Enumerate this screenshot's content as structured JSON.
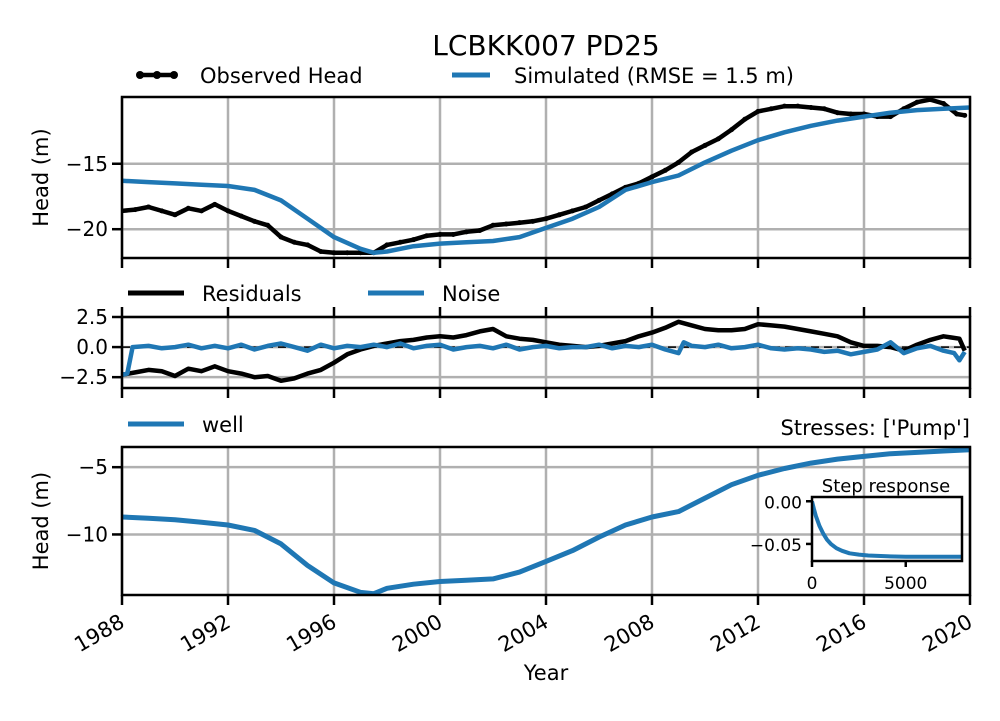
{
  "colors": {
    "observed": "#000000",
    "simulated": "#1f77b4",
    "residuals": "#000000",
    "noise": "#1f77b4",
    "well": "#1f77b4",
    "grid": "#b0b0b0"
  },
  "chart_data": [
    {
      "type": "line",
      "title": "LCBKK007 PD25",
      "xlabel": "",
      "ylabel": "Head (m)",
      "xlim": [
        1988,
        2020
      ],
      "ylim": [
        -22.2,
        -9.9
      ],
      "yticks": [
        -15,
        -20
      ],
      "ytick_labels": [
        "−15",
        "−20"
      ],
      "grid": true,
      "legend": [
        "Observed Head",
        "Simulated (RMSE = 1.5 m)"
      ],
      "legend_position": "above, horizontal",
      "series": [
        {
          "name": "Observed Head",
          "marker": "dot",
          "x": [
            1988.0,
            1988.5,
            1989.0,
            1989.5,
            1990.0,
            1990.5,
            1991.0,
            1991.5,
            1992.0,
            1992.5,
            1993.0,
            1993.5,
            1994.0,
            1994.5,
            1995.0,
            1995.5,
            1996.0,
            1996.5,
            1997.0,
            1997.5,
            1998.0,
            1998.5,
            1999.0,
            1999.5,
            2000.0,
            2000.5,
            2001.0,
            2001.5,
            2002.0,
            2002.5,
            2003.0,
            2003.5,
            2004.0,
            2004.5,
            2005.0,
            2005.5,
            2006.0,
            2006.5,
            2007.0,
            2007.5,
            2008.0,
            2008.5,
            2009.0,
            2009.5,
            2010.0,
            2010.5,
            2011.0,
            2011.5,
            2012.0,
            2012.5,
            2013.0,
            2013.5,
            2014.0,
            2014.5,
            2015.0,
            2015.5,
            2016.0,
            2016.5,
            2017.0,
            2017.5,
            2018.0,
            2018.5,
            2019.0,
            2019.5,
            2019.8
          ],
          "y": [
            -18.6,
            -18.5,
            -18.3,
            -18.6,
            -18.9,
            -18.4,
            -18.6,
            -18.1,
            -18.6,
            -19.0,
            -19.4,
            -19.7,
            -20.6,
            -21.0,
            -21.2,
            -21.7,
            -21.8,
            -21.8,
            -21.8,
            -21.8,
            -21.2,
            -21.0,
            -20.8,
            -20.5,
            -20.4,
            -20.4,
            -20.2,
            -20.1,
            -19.7,
            -19.6,
            -19.5,
            -19.4,
            -19.2,
            -18.9,
            -18.6,
            -18.3,
            -17.8,
            -17.3,
            -16.8,
            -16.5,
            -16.0,
            -15.5,
            -14.9,
            -14.1,
            -13.6,
            -13.1,
            -12.4,
            -11.6,
            -11.0,
            -10.8,
            -10.6,
            -10.6,
            -10.7,
            -10.8,
            -11.1,
            -11.2,
            -11.2,
            -11.4,
            -11.4,
            -10.8,
            -10.3,
            -10.1,
            -10.4,
            -11.2,
            -11.3
          ]
        },
        {
          "name": "Simulated (RMSE = 1.5 m)",
          "x": [
            1988.0,
            1989.0,
            1990.0,
            1991.0,
            1992.0,
            1993.0,
            1994.0,
            1995.0,
            1996.0,
            1997.0,
            1997.5,
            1998.0,
            1999.0,
            2000.0,
            2001.0,
            2002.0,
            2003.0,
            2004.0,
            2005.0,
            2006.0,
            2007.0,
            2008.0,
            2009.0,
            2010.0,
            2011.0,
            2012.0,
            2013.0,
            2014.0,
            2015.0,
            2016.0,
            2017.0,
            2018.0,
            2019.0,
            2020.0
          ],
          "y": [
            -16.3,
            -16.4,
            -16.5,
            -16.6,
            -16.7,
            -17.0,
            -17.8,
            -19.2,
            -20.6,
            -21.5,
            -21.8,
            -21.7,
            -21.3,
            -21.1,
            -21.0,
            -20.9,
            -20.6,
            -19.9,
            -19.2,
            -18.3,
            -17.0,
            -16.4,
            -15.9,
            -14.9,
            -14.0,
            -13.2,
            -12.6,
            -12.1,
            -11.7,
            -11.4,
            -11.1,
            -10.9,
            -10.8,
            -10.7
          ]
        }
      ]
    },
    {
      "type": "line",
      "xlim": [
        1988,
        2020
      ],
      "ylim": [
        -3.4,
        2.5
      ],
      "yticks": [
        2.5,
        0.0,
        -2.5
      ],
      "ytick_labels": [
        "2.5",
        "0.0",
        "−2.5"
      ],
      "zero_line": "dashed",
      "grid": true,
      "legend": [
        "Residuals",
        "Noise"
      ],
      "legend_position": "above, horizontal",
      "series": [
        {
          "name": "Residuals",
          "x": [
            1988.0,
            1988.5,
            1989.0,
            1989.5,
            1990.0,
            1990.5,
            1991.0,
            1991.5,
            1992.0,
            1992.5,
            1993.0,
            1993.5,
            1994.0,
            1994.5,
            1995.0,
            1995.5,
            1996.0,
            1996.5,
            1997.0,
            1997.5,
            1998.0,
            1998.5,
            1999.0,
            1999.5,
            2000.0,
            2000.5,
            2001.0,
            2001.5,
            2002.0,
            2002.5,
            2003.0,
            2003.5,
            2004.0,
            2004.5,
            2005.0,
            2005.5,
            2006.0,
            2006.5,
            2007.0,
            2007.5,
            2008.0,
            2008.5,
            2009.0,
            2009.5,
            2010.0,
            2010.5,
            2011.0,
            2011.5,
            2012.0,
            2012.5,
            2013.0,
            2013.5,
            2014.0,
            2014.5,
            2015.0,
            2015.5,
            2016.0,
            2016.5,
            2017.0,
            2017.5,
            2018.0,
            2018.5,
            2019.0,
            2019.3,
            2019.6,
            2019.8
          ],
          "y": [
            -2.3,
            -2.1,
            -1.9,
            -2.0,
            -2.4,
            -1.8,
            -2.0,
            -1.6,
            -2.0,
            -2.2,
            -2.5,
            -2.4,
            -2.8,
            -2.6,
            -2.2,
            -1.9,
            -1.3,
            -0.6,
            -0.2,
            0.1,
            0.3,
            0.5,
            0.6,
            0.8,
            0.9,
            0.8,
            1.0,
            1.3,
            1.5,
            0.9,
            0.7,
            0.6,
            0.4,
            0.2,
            0.1,
            0.0,
            0.1,
            0.3,
            0.5,
            0.9,
            1.2,
            1.6,
            2.1,
            1.8,
            1.5,
            1.4,
            1.4,
            1.5,
            1.9,
            1.8,
            1.7,
            1.5,
            1.3,
            1.1,
            0.9,
            0.4,
            0.1,
            0.1,
            0.0,
            -0.3,
            0.2,
            0.6,
            0.9,
            0.8,
            0.7,
            -0.3
          ]
        },
        {
          "name": "Noise",
          "x": [
            1988.0,
            1988.2,
            1988.4,
            1989.0,
            1989.5,
            1990.0,
            1990.5,
            1991.0,
            1991.5,
            1992.0,
            1992.5,
            1993.0,
            1993.5,
            1994.0,
            1994.5,
            1995.0,
            1995.5,
            1996.0,
            1996.5,
            1997.0,
            1997.5,
            1998.0,
            1998.5,
            1999.0,
            1999.5,
            2000.0,
            2000.5,
            2001.0,
            2001.5,
            2002.0,
            2002.5,
            2003.0,
            2003.5,
            2004.0,
            2004.5,
            2005.0,
            2005.5,
            2006.0,
            2006.5,
            2007.0,
            2007.5,
            2008.0,
            2008.5,
            2009.0,
            2009.2,
            2009.5,
            2010.0,
            2010.5,
            2011.0,
            2011.5,
            2012.0,
            2012.5,
            2013.0,
            2013.5,
            2014.0,
            2014.5,
            2015.0,
            2015.5,
            2016.0,
            2016.5,
            2017.0,
            2017.5,
            2018.0,
            2018.5,
            2019.0,
            2019.4,
            2019.6,
            2019.8
          ],
          "y": [
            -2.3,
            -2.2,
            0.0,
            0.1,
            -0.1,
            0.0,
            0.2,
            -0.1,
            0.1,
            -0.1,
            0.2,
            -0.2,
            0.1,
            0.3,
            0.0,
            -0.3,
            0.2,
            -0.1,
            0.1,
            0.0,
            0.2,
            0.0,
            0.3,
            -0.1,
            0.1,
            0.2,
            -0.2,
            0.0,
            0.1,
            -0.1,
            0.2,
            -0.2,
            0.0,
            0.1,
            -0.1,
            0.0,
            0.0,
            0.2,
            -0.1,
            0.1,
            0.0,
            0.2,
            -0.2,
            -0.5,
            0.4,
            0.1,
            0.0,
            0.2,
            -0.1,
            0.0,
            0.2,
            -0.1,
            -0.2,
            -0.1,
            -0.2,
            -0.4,
            -0.3,
            -0.6,
            -0.4,
            -0.2,
            0.4,
            -0.5,
            -0.1,
            0.1,
            -0.3,
            -0.5,
            -1.1,
            -0.4
          ]
        }
      ]
    },
    {
      "type": "line",
      "title_right": "Stresses: ['Pump']",
      "xlabel": "Year",
      "ylabel": "Head (m)",
      "xlim": [
        1988,
        2020
      ],
      "ylim": [
        -14.5,
        -3.5
      ],
      "yticks": [
        -5,
        -10
      ],
      "ytick_labels": [
        "−5",
        "−10"
      ],
      "xticks": [
        1988,
        1992,
        1996,
        2000,
        2004,
        2008,
        2012,
        2016,
        2020
      ],
      "xtick_labels": [
        "1988",
        "1992",
        "1996",
        "2000",
        "2004",
        "2008",
        "2012",
        "2016",
        "2020"
      ],
      "grid": true,
      "legend": [
        "well"
      ],
      "legend_position": "above-left",
      "series": [
        {
          "name": "well",
          "x": [
            1988.0,
            1989.0,
            1990.0,
            1991.0,
            1992.0,
            1993.0,
            1994.0,
            1995.0,
            1996.0,
            1997.0,
            1997.5,
            1998.0,
            1999.0,
            2000.0,
            2001.0,
            2002.0,
            2003.0,
            2004.0,
            2005.0,
            2006.0,
            2007.0,
            2008.0,
            2009.0,
            2010.0,
            2011.0,
            2012.0,
            2013.0,
            2014.0,
            2015.0,
            2016.0,
            2017.0,
            2018.0,
            2019.0,
            2020.0
          ],
          "y": [
            -8.7,
            -8.8,
            -8.9,
            -9.1,
            -9.3,
            -9.7,
            -10.7,
            -12.3,
            -13.6,
            -14.3,
            -14.4,
            -14.0,
            -13.7,
            -13.5,
            -13.4,
            -13.3,
            -12.8,
            -12.0,
            -11.2,
            -10.2,
            -9.3,
            -8.7,
            -8.3,
            -7.3,
            -6.3,
            -5.6,
            -5.1,
            -4.7,
            -4.4,
            -4.2,
            -4.0,
            -3.9,
            -3.8,
            -3.7
          ]
        }
      ]
    },
    {
      "type": "line",
      "title": "Step response",
      "xlim": [
        0,
        8000
      ],
      "ylim": [
        -0.07,
        0.005
      ],
      "xticks": [
        0,
        5000
      ],
      "xtick_labels": [
        "0",
        "5000"
      ],
      "yticks": [
        0.0,
        -0.05
      ],
      "ytick_labels": [
        "0.00",
        "−0.05"
      ],
      "series": [
        {
          "name": "",
          "x": [
            0,
            100,
            200,
            400,
            600,
            800,
            1000,
            1300,
            1600,
            2000,
            2500,
            3000,
            3500,
            4000,
            5000,
            6000,
            7000,
            8000
          ],
          "y": [
            0.0,
            -0.009,
            -0.017,
            -0.029,
            -0.038,
            -0.045,
            -0.05,
            -0.055,
            -0.058,
            -0.061,
            -0.0625,
            -0.0635,
            -0.064,
            -0.0645,
            -0.065,
            -0.065,
            -0.065,
            -0.065
          ]
        }
      ]
    }
  ]
}
